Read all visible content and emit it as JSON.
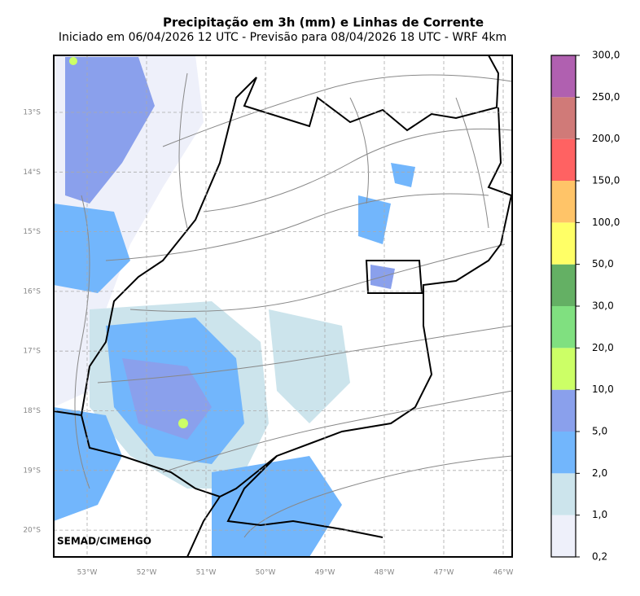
{
  "header": {
    "title": "Precipitação em 3h (mm) e Linhas de Corrente",
    "subtitle": "Iniciado em 06/04/2026 12 UTC - Previsão para 08/04/2026 18 UTC - WRF 4km"
  },
  "map": {
    "lat_labels": [
      "13°S",
      "14°S",
      "15°S",
      "16°S",
      "17°S",
      "18°S",
      "19°S",
      "20°S"
    ],
    "lon_labels": [
      "53°W",
      "52°W",
      "51°W",
      "50°W",
      "49°W",
      "48°W",
      "47°W",
      "46°W"
    ],
    "watermark": "SEMAD/CIMEHGO"
  },
  "colorbar": {
    "labels": [
      "0,2",
      "1,0",
      "2,0",
      "5,0",
      "10,0",
      "20,0",
      "30,0",
      "50,0",
      "100,0",
      "150,0",
      "200,0",
      "250,0",
      "300,0"
    ],
    "colors": [
      "#eef0fa",
      "#cce4ec",
      "#72b6fc",
      "#8aa0ec",
      "#ccff66",
      "#80e080",
      "#64b064",
      "#ffff66",
      "#ffc468",
      "#ff6262",
      "#d07a78",
      "#b060b0"
    ]
  }
}
